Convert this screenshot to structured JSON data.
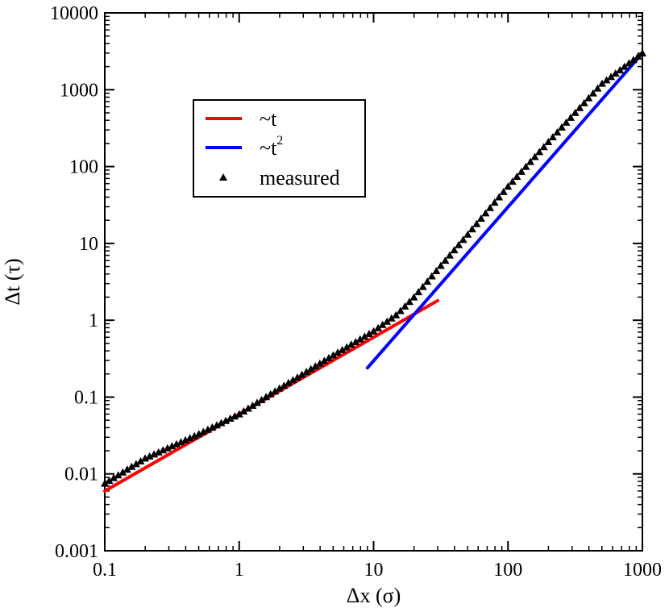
{
  "chart_data": {
    "type": "line",
    "title": "",
    "xlabel": "Δx (σ)",
    "ylabel": "Δt (τ)",
    "xscale": "log",
    "yscale": "log",
    "xlim": [
      0.1,
      1000
    ],
    "ylim": [
      0.001,
      10000
    ],
    "x_tick_labels": [
      "0.1",
      "1",
      "10",
      "100",
      "1000"
    ],
    "y_tick_labels": [
      "0.001",
      "0.01",
      "0.1",
      "1",
      "10",
      "100",
      "1000",
      "10000"
    ],
    "grid": false,
    "legend_position": "upper-left",
    "legend": [
      {
        "label": "~t",
        "superscript": "",
        "marker": "line",
        "color": "#ff0000"
      },
      {
        "label": "~t",
        "superscript": "2",
        "marker": "line",
        "color": "#0000ff"
      },
      {
        "label": "measured",
        "superscript": "",
        "marker": "triangle",
        "color": "#000000"
      }
    ],
    "series": [
      {
        "name": "~t",
        "color": "#ff0000",
        "type": "line",
        "x": [
          0.1,
          30
        ],
        "y": [
          0.006,
          1.8
        ]
      },
      {
        "name": "~t2",
        "color": "#0000ff",
        "type": "line",
        "x": [
          9,
          1000
        ],
        "y": [
          0.24,
          2990
        ]
      },
      {
        "name": "measured",
        "color": "#000000",
        "type": "scatter",
        "marker": "triangle",
        "x": [
          0.1,
          0.2,
          0.5,
          1,
          2,
          5,
          10,
          15,
          20,
          30,
          50,
          100,
          200,
          500,
          1000
        ],
        "y": [
          0.0075,
          0.016,
          0.033,
          0.06,
          0.13,
          0.35,
          0.72,
          1.2,
          2.0,
          4.6,
          13,
          55,
          210,
          1200,
          3000
        ],
        "density_per_decade": 30
      }
    ]
  }
}
